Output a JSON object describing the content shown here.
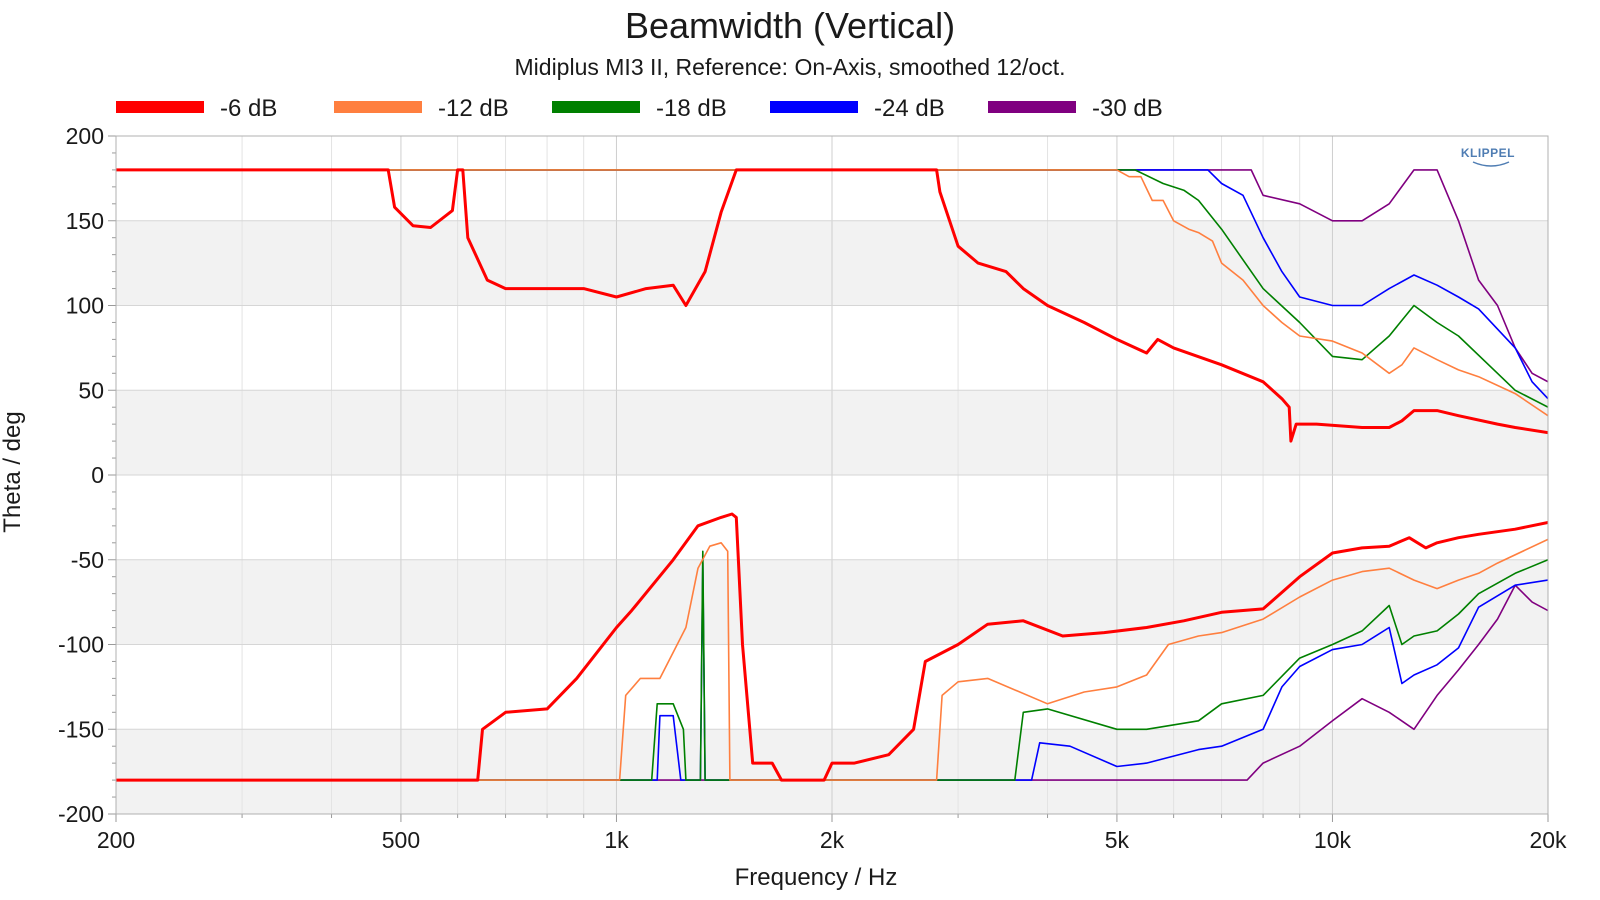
{
  "chart_data": {
    "type": "line",
    "title": "Beamwidth (Vertical)",
    "subtitle": "Midiplus MI3 II, Reference: On-Axis, smoothed 12/oct.",
    "xlabel": "Frequency / Hz",
    "ylabel": "Theta / deg",
    "xscale": "log",
    "xlim": [
      200,
      20000
    ],
    "ylim": [
      -200,
      200
    ],
    "xticks": [
      200,
      500,
      1000,
      2000,
      5000,
      10000,
      20000
    ],
    "xtick_labels": [
      "200",
      "500",
      "1k",
      "2k",
      "5k",
      "10k",
      "20k"
    ],
    "yticks": [
      200,
      150,
      100,
      50,
      0,
      -50,
      -100,
      -150,
      -200
    ],
    "ytick_labels": [
      "200",
      "150",
      "100",
      "50",
      "0",
      "-50",
      "-100",
      "-150",
      "-200"
    ],
    "grid": true,
    "legend_position": "top",
    "logo": "KLIPPEL",
    "series": [
      {
        "name": "-6 dB",
        "color": "#ff0000",
        "upper": [
          [
            200,
            180
          ],
          [
            480,
            180
          ],
          [
            490,
            158
          ],
          [
            520,
            147
          ],
          [
            550,
            146
          ],
          [
            590,
            156
          ],
          [
            600,
            180
          ],
          [
            610,
            180
          ],
          [
            620,
            140
          ],
          [
            660,
            115
          ],
          [
            700,
            110
          ],
          [
            800,
            110
          ],
          [
            900,
            110
          ],
          [
            1000,
            105
          ],
          [
            1100,
            110
          ],
          [
            1200,
            112
          ],
          [
            1250,
            100
          ],
          [
            1330,
            120
          ],
          [
            1400,
            155
          ],
          [
            1470,
            180
          ],
          [
            2800,
            180
          ],
          [
            2830,
            167
          ],
          [
            3000,
            135
          ],
          [
            3200,
            125
          ],
          [
            3500,
            120
          ],
          [
            3700,
            110
          ],
          [
            4000,
            100
          ],
          [
            4500,
            90
          ],
          [
            5000,
            80
          ],
          [
            5500,
            72
          ],
          [
            5700,
            80
          ],
          [
            6000,
            75
          ],
          [
            7000,
            65
          ],
          [
            8000,
            55
          ],
          [
            8500,
            45
          ],
          [
            8700,
            40
          ],
          [
            8750,
            20
          ],
          [
            8900,
            30
          ],
          [
            9500,
            30
          ],
          [
            11000,
            28
          ],
          [
            12000,
            28
          ],
          [
            12500,
            32
          ],
          [
            13000,
            38
          ],
          [
            14000,
            38
          ],
          [
            15000,
            35
          ],
          [
            17000,
            30
          ],
          [
            18000,
            28
          ],
          [
            20000,
            25
          ]
        ],
        "lower": [
          [
            200,
            -180
          ],
          [
            640,
            -180
          ],
          [
            650,
            -150
          ],
          [
            700,
            -140
          ],
          [
            800,
            -138
          ],
          [
            880,
            -120
          ],
          [
            1000,
            -90
          ],
          [
            1050,
            -80
          ],
          [
            1200,
            -50
          ],
          [
            1300,
            -30
          ],
          [
            1400,
            -25
          ],
          [
            1450,
            -23
          ],
          [
            1470,
            -25
          ],
          [
            1500,
            -100
          ],
          [
            1550,
            -170
          ],
          [
            1650,
            -170
          ],
          [
            1700,
            -180
          ],
          [
            1950,
            -180
          ],
          [
            2000,
            -170
          ],
          [
            2150,
            -170
          ],
          [
            2400,
            -165
          ],
          [
            2600,
            -150
          ],
          [
            2700,
            -110
          ],
          [
            3000,
            -100
          ],
          [
            3300,
            -88
          ],
          [
            3700,
            -86
          ],
          [
            4200,
            -95
          ],
          [
            4800,
            -93
          ],
          [
            5500,
            -90
          ],
          [
            6200,
            -86
          ],
          [
            7000,
            -81
          ],
          [
            8000,
            -79
          ],
          [
            9000,
            -60
          ],
          [
            10000,
            -46
          ],
          [
            11000,
            -43
          ],
          [
            12000,
            -42
          ],
          [
            12800,
            -37
          ],
          [
            13500,
            -43
          ],
          [
            14000,
            -40
          ],
          [
            15000,
            -37
          ],
          [
            16000,
            -35
          ],
          [
            18000,
            -32
          ],
          [
            20000,
            -28
          ]
        ]
      },
      {
        "name": "-12 dB",
        "color": "#ff7f3f",
        "upper": [
          [
            200,
            180
          ],
          [
            5000,
            180
          ],
          [
            5200,
            176
          ],
          [
            5400,
            176
          ],
          [
            5600,
            162
          ],
          [
            5800,
            162
          ],
          [
            6000,
            150
          ],
          [
            6300,
            145
          ],
          [
            6500,
            143
          ],
          [
            6800,
            138
          ],
          [
            7000,
            125
          ],
          [
            7500,
            115
          ],
          [
            8000,
            100
          ],
          [
            8500,
            90
          ],
          [
            9000,
            82
          ],
          [
            10000,
            79
          ],
          [
            11000,
            72
          ],
          [
            12000,
            60
          ],
          [
            12500,
            65
          ],
          [
            13000,
            75
          ],
          [
            14000,
            68
          ],
          [
            15000,
            62
          ],
          [
            16000,
            58
          ],
          [
            18000,
            48
          ],
          [
            20000,
            35
          ]
        ],
        "lower": [
          [
            200,
            -180
          ],
          [
            1010,
            -180
          ],
          [
            1030,
            -130
          ],
          [
            1080,
            -120
          ],
          [
            1150,
            -120
          ],
          [
            1250,
            -90
          ],
          [
            1300,
            -55
          ],
          [
            1350,
            -42
          ],
          [
            1400,
            -40
          ],
          [
            1430,
            -45
          ],
          [
            1440,
            -180
          ],
          [
            2800,
            -180
          ],
          [
            2850,
            -130
          ],
          [
            3000,
            -122
          ],
          [
            3300,
            -120
          ],
          [
            4000,
            -135
          ],
          [
            4500,
            -128
          ],
          [
            5000,
            -125
          ],
          [
            5500,
            -118
          ],
          [
            5900,
            -100
          ],
          [
            6500,
            -95
          ],
          [
            7000,
            -93
          ],
          [
            8000,
            -85
          ],
          [
            9000,
            -72
          ],
          [
            10000,
            -62
          ],
          [
            11000,
            -57
          ],
          [
            12000,
            -55
          ],
          [
            13000,
            -62
          ],
          [
            14000,
            -67
          ],
          [
            15000,
            -62
          ],
          [
            16000,
            -58
          ],
          [
            17000,
            -52
          ],
          [
            20000,
            -38
          ]
        ]
      },
      {
        "name": "-18 dB",
        "color": "#008000",
        "upper": [
          [
            200,
            180
          ],
          [
            5300,
            180
          ],
          [
            5800,
            172
          ],
          [
            6200,
            168
          ],
          [
            6500,
            162
          ],
          [
            7000,
            145
          ],
          [
            8000,
            110
          ],
          [
            9000,
            90
          ],
          [
            10000,
            70
          ],
          [
            11000,
            68
          ],
          [
            12000,
            82
          ],
          [
            13000,
            100
          ],
          [
            14000,
            90
          ],
          [
            15000,
            82
          ],
          [
            17000,
            60
          ],
          [
            18000,
            50
          ],
          [
            20000,
            40
          ]
        ],
        "lower": [
          [
            200,
            -180
          ],
          [
            1120,
            -180
          ],
          [
            1140,
            -135
          ],
          [
            1200,
            -135
          ],
          [
            1240,
            -150
          ],
          [
            1250,
            -180
          ],
          [
            1310,
            -180
          ],
          [
            1320,
            -45
          ],
          [
            1330,
            -180
          ],
          [
            3600,
            -180
          ],
          [
            3700,
            -140
          ],
          [
            4000,
            -138
          ],
          [
            5000,
            -150
          ],
          [
            5500,
            -150
          ],
          [
            6500,
            -145
          ],
          [
            7000,
            -135
          ],
          [
            8000,
            -130
          ],
          [
            9000,
            -108
          ],
          [
            10000,
            -100
          ],
          [
            11000,
            -92
          ],
          [
            12000,
            -77
          ],
          [
            12500,
            -100
          ],
          [
            13000,
            -95
          ],
          [
            14000,
            -92
          ],
          [
            15000,
            -82
          ],
          [
            16000,
            -70
          ],
          [
            18000,
            -58
          ],
          [
            20000,
            -50
          ]
        ]
      },
      {
        "name": "-24 dB",
        "color": "#0000ff",
        "upper": [
          [
            200,
            180
          ],
          [
            6700,
            180
          ],
          [
            7000,
            172
          ],
          [
            7500,
            165
          ],
          [
            8000,
            140
          ],
          [
            8500,
            120
          ],
          [
            9000,
            105
          ],
          [
            10000,
            100
          ],
          [
            11000,
            100
          ],
          [
            12000,
            110
          ],
          [
            13000,
            118
          ],
          [
            14000,
            112
          ],
          [
            15000,
            105
          ],
          [
            16000,
            98
          ],
          [
            18000,
            75
          ],
          [
            19000,
            55
          ],
          [
            20000,
            45
          ]
        ],
        "lower": [
          [
            200,
            -180
          ],
          [
            1140,
            -180
          ],
          [
            1150,
            -142
          ],
          [
            1200,
            -142
          ],
          [
            1230,
            -180
          ],
          [
            1310,
            -180
          ],
          [
            1320,
            -52
          ],
          [
            1330,
            -180
          ],
          [
            3800,
            -180
          ],
          [
            3900,
            -158
          ],
          [
            4300,
            -160
          ],
          [
            5000,
            -172
          ],
          [
            5500,
            -170
          ],
          [
            6500,
            -162
          ],
          [
            7000,
            -160
          ],
          [
            8000,
            -150
          ],
          [
            8500,
            -125
          ],
          [
            9000,
            -113
          ],
          [
            10000,
            -103
          ],
          [
            11000,
            -100
          ],
          [
            12000,
            -90
          ],
          [
            12500,
            -123
          ],
          [
            13000,
            -118
          ],
          [
            14000,
            -112
          ],
          [
            15000,
            -102
          ],
          [
            16000,
            -78
          ],
          [
            18000,
            -65
          ],
          [
            20000,
            -62
          ]
        ]
      },
      {
        "name": "-30 dB",
        "color": "#800080",
        "upper": [
          [
            200,
            180
          ],
          [
            7700,
            180
          ],
          [
            8000,
            165
          ],
          [
            9000,
            160
          ],
          [
            10000,
            150
          ],
          [
            11000,
            150
          ],
          [
            12000,
            160
          ],
          [
            13000,
            180
          ],
          [
            14000,
            180
          ],
          [
            15000,
            150
          ],
          [
            16000,
            115
          ],
          [
            17000,
            100
          ],
          [
            18000,
            75
          ],
          [
            19000,
            60
          ],
          [
            20000,
            55
          ]
        ],
        "lower": [
          [
            200,
            -180
          ],
          [
            7600,
            -180
          ],
          [
            8000,
            -170
          ],
          [
            9000,
            -160
          ],
          [
            10000,
            -145
          ],
          [
            11000,
            -132
          ],
          [
            12000,
            -140
          ],
          [
            13000,
            -150
          ],
          [
            14000,
            -130
          ],
          [
            15000,
            -115
          ],
          [
            16000,
            -100
          ],
          [
            17000,
            -85
          ],
          [
            18000,
            -65
          ],
          [
            19000,
            -75
          ],
          [
            20000,
            -80
          ]
        ]
      }
    ]
  }
}
